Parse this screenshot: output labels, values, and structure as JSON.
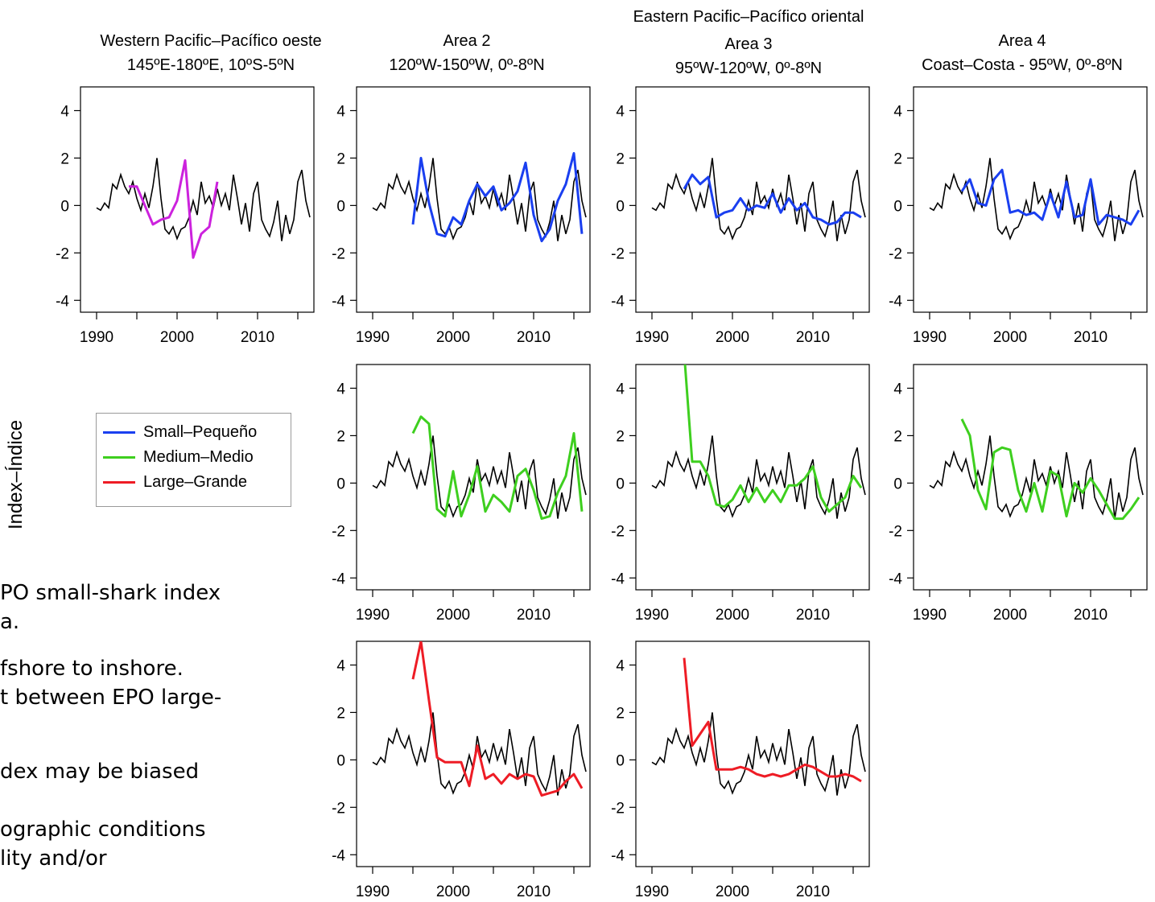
{
  "titles": {
    "area1_line1": "Western Pacific–Pacífico oeste",
    "area1_line2": "145ºE-180ºE, 10ºS-5ºN",
    "area2_line1": "Area 2",
    "area2_line2": "120ºW-150ºW, 0º-8ºN",
    "group_east": "Eastern Pacific–Pacífico oriental",
    "area3_line1": "Area 3",
    "area3_line2": "95ºW-120ºW, 0º-8ºN",
    "area4_line1": "Area 4",
    "area4_line2": "Coast–Costa - 95ºW, 0º-8ºN"
  },
  "ylabel": "Index–Índice",
  "legend": [
    {
      "label": "Small–Pequeño",
      "color": "#1a3ff0"
    },
    {
      "label": "Medium–Medio",
      "color": "#3ecf1f"
    },
    {
      "label": "Large–Grande",
      "color": "#ee1c25"
    }
  ],
  "text_fragments": [
    "PO small-shark index",
    "a.",
    "fshore to inshore.",
    "t between EPO large-",
    "dex may be biased",
    "ographic conditions",
    "lity and/or"
  ],
  "colors": {
    "index_line": "#000000",
    "western_series": "#cc22dd"
  },
  "chart_data": {
    "type": "line",
    "xlim": [
      1988,
      2017
    ],
    "ylim": [
      -4.5,
      5
    ],
    "xticks": [
      1990,
      1995,
      2000,
      2005,
      2010,
      2015
    ],
    "xtick_labels": [
      "1990",
      "2000",
      "2010"
    ],
    "yticks": [
      -4,
      -2,
      0,
      2,
      4
    ],
    "ytick_labels": [
      "-4",
      "-2",
      "0",
      "2",
      "4"
    ],
    "black_index": {
      "name": "",
      "x": [
        1990.0,
        1990.5,
        1991.0,
        1991.5,
        1992.0,
        1992.5,
        1993.0,
        1993.5,
        1994.0,
        1994.5,
        1995.0,
        1995.5,
        1996.0,
        1996.5,
        1997.0,
        1997.5,
        1998.0,
        1998.5,
        1999.0,
        1999.5,
        2000.0,
        2000.5,
        2001.0,
        2001.5,
        2002.0,
        2002.5,
        2003.0,
        2003.5,
        2004.0,
        2004.5,
        2005.0,
        2005.5,
        2006.0,
        2006.5,
        2007.0,
        2007.5,
        2008.0,
        2008.5,
        2009.0,
        2009.5,
        2010.0,
        2010.5,
        2011.0,
        2011.5,
        2012.0,
        2012.5,
        2013.0,
        2013.5,
        2014.0,
        2014.5,
        2015.0,
        2015.5,
        2016.0,
        2016.5
      ],
      "y": [
        -0.1,
        -0.2,
        0.1,
        -0.1,
        0.9,
        0.7,
        1.3,
        0.8,
        0.5,
        1.0,
        0.3,
        -0.2,
        0.5,
        -0.1,
        0.8,
        2.0,
        0.3,
        -1.0,
        -1.2,
        -0.9,
        -1.4,
        -1.0,
        -0.9,
        -0.5,
        0.2,
        -0.4,
        1.0,
        0.1,
        0.4,
        -0.1,
        0.7,
        0.0,
        0.5,
        -0.2,
        1.3,
        0.3,
        -0.8,
        0.1,
        -1.1,
        0.5,
        1.0,
        -0.6,
        -1.0,
        -1.3,
        -0.7,
        0.2,
        -1.5,
        -0.4,
        -1.2,
        -0.6,
        1.0,
        1.5,
        0.2,
        -0.5
      ]
    },
    "panels": [
      {
        "id": "area1-size",
        "series": [
          {
            "color": "#cc22dd",
            "x": [
              1994,
              1995,
              1996,
              1997,
              1998,
              1999,
              2000,
              2001,
              2002,
              2003,
              2004,
              2005
            ],
            "y": [
              0.8,
              0.8,
              0.0,
              -0.8,
              -0.6,
              -0.5,
              0.2,
              1.9,
              -2.2,
              -1.2,
              -0.9,
              1.0
            ]
          }
        ]
      },
      {
        "id": "area2-small",
        "series": [
          {
            "color": "#1a3ff0",
            "x": [
              1995,
              1996,
              1997,
              1998,
              1999,
              2000,
              2001,
              2002,
              2003,
              2004,
              2005,
              2006,
              2007,
              2008,
              2009,
              2010,
              2011,
              2012,
              2013,
              2014,
              2015,
              2016
            ],
            "y": [
              -0.8,
              2.0,
              0.1,
              -1.2,
              -1.3,
              -0.5,
              -0.8,
              0.2,
              0.9,
              0.4,
              0.8,
              -0.2,
              0.1,
              0.6,
              1.8,
              -0.4,
              -1.5,
              -1.0,
              0.2,
              0.9,
              2.2,
              -1.2
            ]
          }
        ]
      },
      {
        "id": "area3-small",
        "series": [
          {
            "color": "#1a3ff0",
            "x": [
              1994,
              1995,
              1996,
              1997,
              1998,
              1999,
              2000,
              2001,
              2002,
              2003,
              2004,
              2005,
              2006,
              2007,
              2008,
              2009,
              2010,
              2011,
              2012,
              2013,
              2014,
              2015,
              2016
            ],
            "y": [
              0.7,
              1.3,
              0.9,
              1.2,
              -0.5,
              -0.3,
              -0.2,
              0.3,
              -0.2,
              0.0,
              -0.1,
              0.5,
              -0.3,
              0.3,
              -0.2,
              0.1,
              -0.5,
              -0.6,
              -0.8,
              -0.7,
              -0.3,
              -0.3,
              -0.5
            ]
          }
        ]
      },
      {
        "id": "area4-small",
        "series": [
          {
            "color": "#1a3ff0",
            "x": [
              1994,
              1995,
              1996,
              1997,
              1998,
              1999,
              2000,
              2001,
              2002,
              2003,
              2004,
              2005,
              2006,
              2007,
              2008,
              2009,
              2010,
              2011,
              2012,
              2013,
              2014,
              2015,
              2016
            ],
            "y": [
              0.6,
              1.1,
              0.1,
              0.0,
              1.1,
              1.5,
              -0.3,
              -0.2,
              -0.4,
              -0.3,
              -0.6,
              0.5,
              -0.5,
              1.0,
              -0.5,
              -0.4,
              1.1,
              -0.8,
              -0.4,
              -0.5,
              -0.6,
              -0.8,
              -0.2
            ]
          }
        ]
      },
      {
        "id": "area2-medium",
        "series": [
          {
            "color": "#3ecf1f",
            "x": [
              1995,
              1996,
              1997,
              1998,
              1999,
              2000,
              2001,
              2002,
              2003,
              2004,
              2005,
              2006,
              2007,
              2008,
              2009,
              2010,
              2011,
              2012,
              2013,
              2014,
              2015,
              2016
            ],
            "y": [
              2.1,
              2.8,
              2.5,
              -1.1,
              -1.4,
              0.5,
              -1.4,
              -0.5,
              0.7,
              -1.2,
              -0.5,
              -0.8,
              -1.2,
              0.3,
              0.6,
              -0.3,
              -1.5,
              -1.4,
              -0.4,
              0.3,
              2.1,
              -1.2
            ]
          }
        ]
      },
      {
        "id": "area3-medium",
        "series": [
          {
            "color": "#3ecf1f",
            "x": [
              1994,
              1995,
              1996,
              1997,
              1998,
              1999,
              2000,
              2001,
              2002,
              2003,
              2004,
              2005,
              2006,
              2007,
              2008,
              2009,
              2010,
              2011,
              2012,
              2013,
              2014,
              2015,
              2016
            ],
            "y": [
              5.5,
              0.9,
              0.9,
              0.3,
              -0.9,
              -1.0,
              -0.7,
              -0.1,
              -0.8,
              -0.2,
              -0.8,
              -0.3,
              -0.8,
              -0.1,
              -0.1,
              0.2,
              0.7,
              -0.6,
              -1.2,
              -0.9,
              -0.6,
              0.3,
              -0.2
            ]
          }
        ]
      },
      {
        "id": "area4-medium",
        "series": [
          {
            "color": "#3ecf1f",
            "x": [
              1994,
              1995,
              1996,
              1997,
              1998,
              1999,
              2000,
              2001,
              2002,
              2003,
              2004,
              2005,
              2006,
              2007,
              2008,
              2009,
              2010,
              2011,
              2012,
              2013,
              2014,
              2015,
              2016
            ],
            "y": [
              2.7,
              2.0,
              -0.3,
              -1.1,
              1.3,
              1.5,
              1.4,
              -0.3,
              -1.2,
              0.0,
              -1.2,
              0.5,
              0.3,
              -1.4,
              0.0,
              -0.4,
              0.2,
              -0.3,
              -0.9,
              -1.5,
              -1.5,
              -1.1,
              -0.6
            ]
          }
        ]
      },
      {
        "id": "area2-large",
        "series": [
          {
            "color": "#ee1c25",
            "x": [
              1995,
              1996,
              1997,
              1998,
              1999,
              2000,
              2001,
              2002,
              2003,
              2004,
              2005,
              2006,
              2007,
              2008,
              2009,
              2010,
              2011,
              2012,
              2013,
              2014,
              2015,
              2016
            ],
            "y": [
              3.4,
              5.0,
              2.5,
              0.1,
              -0.1,
              -0.1,
              -0.1,
              -1.1,
              0.6,
              -0.8,
              -0.6,
              -1.0,
              -0.6,
              -0.8,
              -0.6,
              -0.7,
              -1.5,
              -1.4,
              -1.3,
              -0.9,
              -0.6,
              -1.2
            ]
          }
        ]
      },
      {
        "id": "area3-large",
        "series": [
          {
            "color": "#ee1c25",
            "x": [
              1994,
              1995,
              1996,
              1997,
              1998,
              1999,
              2000,
              2001,
              2002,
              2003,
              2004,
              2005,
              2006,
              2007,
              2008,
              2009,
              2010,
              2011,
              2012,
              2013,
              2014,
              2015,
              2016
            ],
            "y": [
              4.3,
              0.6,
              1.1,
              1.6,
              -0.4,
              -0.4,
              -0.4,
              -0.3,
              -0.4,
              -0.6,
              -0.7,
              -0.6,
              -0.7,
              -0.6,
              -0.4,
              -0.2,
              -0.3,
              -0.5,
              -0.7,
              -0.7,
              -0.6,
              -0.7,
              -0.9
            ]
          }
        ]
      }
    ]
  }
}
